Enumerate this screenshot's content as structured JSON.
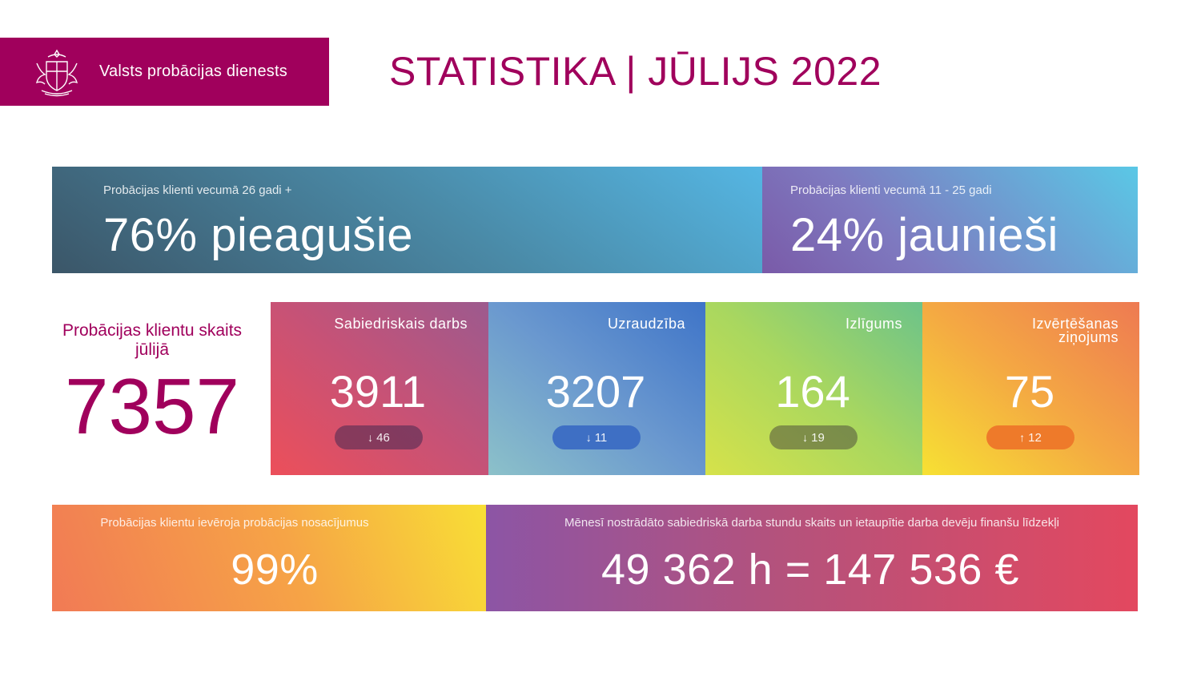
{
  "header": {
    "org_name": "Valsts probācijas dienests",
    "title": "STATISTIKA | JŪLIJS 2022",
    "logo_icon": "coat-of-arms-icon"
  },
  "age_split": {
    "adults_label": "Probācijas klienti vecumā 26 gadi +",
    "adults_value": "76% pieagušie",
    "youth_label": "Probācijas klienti vecumā 11 - 25 gadi",
    "youth_value": "24% jaunieši"
  },
  "total": {
    "label": "Probācijas klientu skaits jūlijā",
    "value": "7357"
  },
  "categories": [
    {
      "name": "Sabiedriskais darbs",
      "value": "3911",
      "change": "46",
      "direction": "down"
    },
    {
      "name": "Uzraudzība",
      "value": "3207",
      "change": "11",
      "direction": "down"
    },
    {
      "name": "Izlīgums",
      "value": "164",
      "change": "19",
      "direction": "down"
    },
    {
      "name": "Izvērtēšanas ziņojums",
      "value": "75",
      "change": "12",
      "direction": "up"
    }
  ],
  "compliance": {
    "label": "Probācijas klientu ievēroja probācijas nosacījumus",
    "value": "99%"
  },
  "hours": {
    "label": "Mēnesī nostrādāto sabiedriskā darba stundu skaits un ietaupītie darba devēju finanšu līdzekļi",
    "value": "49 362 h = 147 536 €"
  },
  "colors": {
    "brand": "#a0005c"
  }
}
